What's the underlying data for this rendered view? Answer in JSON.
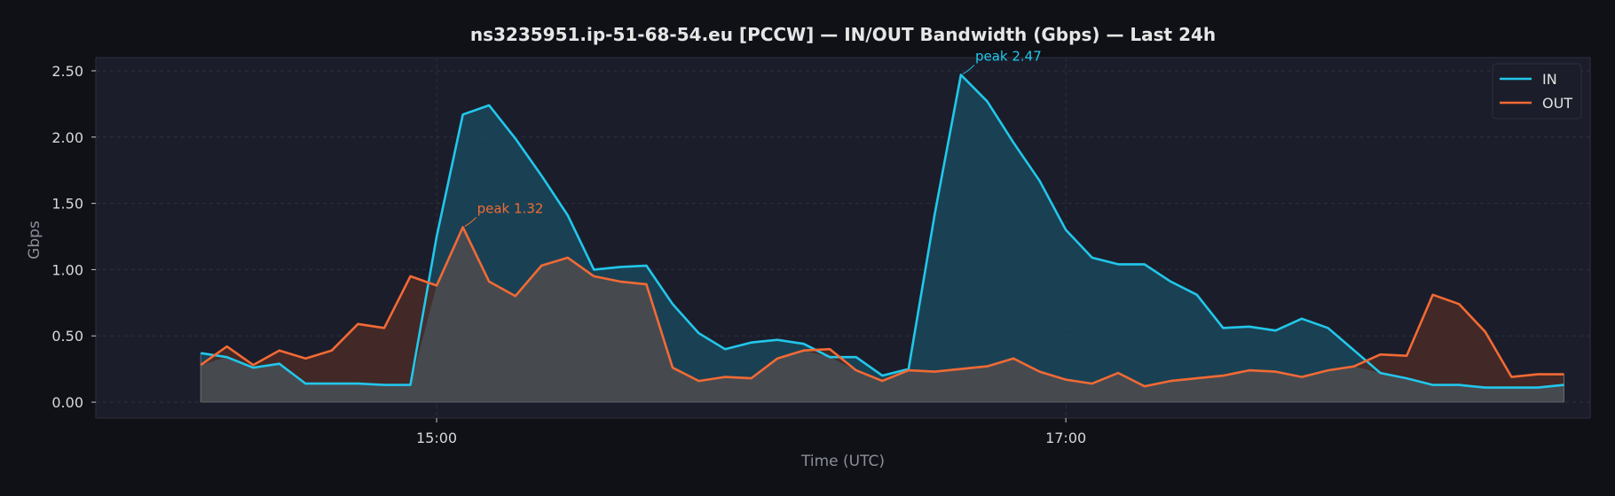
{
  "chart_data": {
    "type": "line",
    "title": "ns3235951.ip-51-68-54.eu [PCCW] — IN/OUT Bandwidth (Gbps) — Last 24h",
    "xlabel": "Time (UTC)",
    "ylabel": "Gbps",
    "x": [
      "14:15",
      "14:20",
      "14:25",
      "14:30",
      "14:35",
      "14:40",
      "14:45",
      "14:50",
      "14:55",
      "15:00",
      "15:05",
      "15:10",
      "15:15",
      "15:20",
      "15:25",
      "15:30",
      "15:35",
      "15:40",
      "15:45",
      "15:50",
      "15:55",
      "16:00",
      "16:05",
      "16:10",
      "16:15",
      "16:20",
      "16:25",
      "16:30",
      "16:35",
      "16:40",
      "16:45",
      "16:50",
      "16:55",
      "17:00",
      "17:05",
      "17:10",
      "17:15",
      "17:20",
      "17:25",
      "17:30",
      "17:35",
      "17:40",
      "17:45",
      "17:50",
      "17:55",
      "18:00",
      "18:05",
      "18:10",
      "18:15",
      "18:20",
      "18:25",
      "18:30",
      "18:35"
    ],
    "x_range": [
      "13:55",
      "18:40"
    ],
    "x_ticks": [
      "15:00",
      "17:00"
    ],
    "ylim": [
      -0.12,
      2.6
    ],
    "y_ticks": [
      "0.00",
      "0.50",
      "1.00",
      "1.50",
      "2.00",
      "2.50"
    ],
    "grid": true,
    "legend_position": "top-right",
    "series": [
      {
        "name": "IN",
        "color": "#22c7ec",
        "fill": "#1a4a5e",
        "values": [
          0.37,
          0.34,
          0.26,
          0.29,
          0.14,
          0.14,
          0.14,
          0.13,
          0.13,
          1.25,
          2.17,
          2.24,
          1.99,
          1.71,
          1.41,
          1.0,
          1.02,
          1.03,
          0.74,
          0.52,
          0.4,
          0.45,
          0.47,
          0.44,
          0.34,
          0.34,
          0.2,
          0.25,
          1.42,
          2.47,
          2.27,
          1.96,
          1.67,
          1.3,
          1.09,
          1.04,
          1.04,
          0.91,
          0.81,
          0.56,
          0.57,
          0.54,
          0.63,
          0.56,
          0.39,
          0.22,
          0.18,
          0.13,
          0.13,
          0.11,
          0.11,
          0.11,
          0.13
        ]
      },
      {
        "name": "OUT",
        "color": "#f26a35",
        "fill": "#4c2a26",
        "values": [
          0.28,
          0.42,
          0.28,
          0.39,
          0.33,
          0.39,
          0.59,
          0.56,
          0.95,
          0.88,
          1.32,
          0.91,
          0.8,
          1.03,
          1.09,
          0.95,
          0.91,
          0.89,
          0.26,
          0.16,
          0.19,
          0.18,
          0.33,
          0.39,
          0.4,
          0.24,
          0.16,
          0.24,
          0.23,
          0.25,
          0.27,
          0.33,
          0.23,
          0.17,
          0.14,
          0.22,
          0.12,
          0.16,
          0.18,
          0.2,
          0.24,
          0.23,
          0.19,
          0.24,
          0.27,
          0.36,
          0.35,
          0.81,
          0.74,
          0.53,
          0.19,
          0.21,
          0.21
        ]
      }
    ],
    "annotations": [
      {
        "series": "OUT",
        "x": "15:05",
        "y": 1.32,
        "label": "peak 1.32",
        "color": "#f26a35"
      },
      {
        "series": "IN",
        "x": "16:40",
        "y": 2.47,
        "label": "peak 2.47",
        "color": "#22c7ec"
      }
    ]
  }
}
